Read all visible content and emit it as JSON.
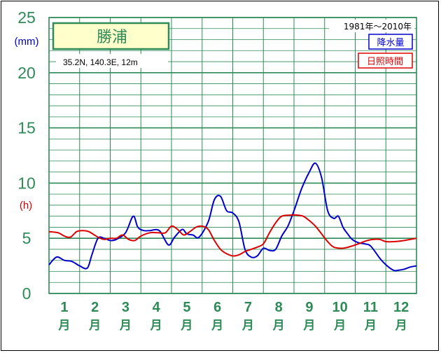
{
  "station": {
    "name": "勝浦",
    "coords": "35.2N,  140.3E,  12m"
  },
  "period": "1981年〜2010年",
  "legend": {
    "precip": "降水量",
    "sunshine": "日照時間"
  },
  "colors": {
    "grid": "#2e8b57",
    "label": "#2e8b57",
    "precip": "#0000cc",
    "sunshine": "#dd0000",
    "title_bg": "#ffffcc"
  },
  "chart_data": {
    "type": "line",
    "title": "勝浦",
    "y_unit_left": "(mm)",
    "y_unit_right": "(h)",
    "ylim": [
      0,
      25
    ],
    "yticks": [
      "0",
      "5",
      "10",
      "15",
      "20",
      "25"
    ],
    "months": [
      {
        "num": "1",
        "kanji": "月"
      },
      {
        "num": "2",
        "kanji": "月"
      },
      {
        "num": "3",
        "kanji": "月"
      },
      {
        "num": "4",
        "kanji": "月"
      },
      {
        "num": "5",
        "kanji": "月"
      },
      {
        "num": "6",
        "kanji": "月"
      },
      {
        "num": "7",
        "kanji": "月"
      },
      {
        "num": "8",
        "kanji": "月"
      },
      {
        "num": "9",
        "kanji": "月"
      },
      {
        "num": "10",
        "kanji": "月"
      },
      {
        "num": "11",
        "kanji": "月"
      },
      {
        "num": "12",
        "kanji": "月"
      }
    ],
    "x_range": [
      0,
      12
    ],
    "series": [
      {
        "key": "precip",
        "name": "降水量",
        "color": "#0000cc",
        "x": [
          0.0,
          0.25,
          0.5,
          0.75,
          1.0,
          1.25,
          1.4,
          1.6,
          1.8,
          2.0,
          2.2,
          2.5,
          2.75,
          2.9,
          3.1,
          3.3,
          3.6,
          3.9,
          4.1,
          4.35,
          4.5,
          4.7,
          4.9,
          5.2,
          5.4,
          5.6,
          5.8,
          6.0,
          6.2,
          6.4,
          6.6,
          6.8,
          7.0,
          7.2,
          7.4,
          7.6,
          7.8,
          8.0,
          8.25,
          8.5,
          8.7,
          8.9,
          9.1,
          9.3,
          9.45,
          9.6,
          9.75,
          9.9,
          10.1,
          10.3,
          10.5,
          10.8,
          11.0,
          11.25,
          11.4,
          11.6,
          11.8,
          12.0
        ],
        "y": [
          2.6,
          3.3,
          3.0,
          2.9,
          2.5,
          2.3,
          3.5,
          5.0,
          5.0,
          4.8,
          4.9,
          5.5,
          7.0,
          6.0,
          5.7,
          5.7,
          5.7,
          4.4,
          5.1,
          5.8,
          5.4,
          5.3,
          5.1,
          6.5,
          8.5,
          8.8,
          7.5,
          7.3,
          6.5,
          4.0,
          3.3,
          3.4,
          4.1,
          3.9,
          4.0,
          5.2,
          6.1,
          7.5,
          9.5,
          11.0,
          11.8,
          10.5,
          7.5,
          6.8,
          7.0,
          6.0,
          5.4,
          4.9,
          4.6,
          4.5,
          4.3,
          3.2,
          2.6,
          2.1,
          2.1,
          2.2,
          2.4,
          2.5
        ]
      },
      {
        "key": "sunshine",
        "name": "日照時間",
        "color": "#dd0000",
        "x": [
          0.0,
          0.3,
          0.5,
          0.7,
          0.9,
          1.1,
          1.3,
          1.6,
          1.8,
          2.0,
          2.2,
          2.4,
          2.6,
          2.8,
          3.0,
          3.3,
          3.55,
          3.8,
          4.0,
          4.2,
          4.4,
          4.6,
          4.8,
          5.0,
          5.2,
          5.4,
          5.6,
          5.8,
          6.0,
          6.2,
          6.4,
          6.6,
          6.8,
          7.0,
          7.2,
          7.4,
          7.6,
          7.9,
          8.1,
          8.3,
          8.5,
          8.7,
          8.9,
          9.1,
          9.3,
          9.6,
          9.9,
          10.2,
          10.4,
          10.6,
          10.8,
          11.0,
          11.3,
          11.6,
          12.0
        ],
        "y": [
          5.6,
          5.5,
          5.2,
          5.1,
          5.6,
          5.7,
          5.6,
          5.1,
          4.9,
          5.0,
          5.0,
          5.3,
          4.9,
          4.8,
          5.2,
          5.5,
          5.5,
          5.5,
          6.1,
          5.8,
          5.3,
          5.6,
          6.0,
          6.1,
          5.8,
          4.8,
          4.0,
          3.6,
          3.4,
          3.5,
          3.8,
          4.0,
          4.2,
          4.5,
          5.5,
          6.4,
          7.0,
          7.1,
          7.1,
          7.0,
          6.6,
          6.1,
          5.4,
          4.7,
          4.2,
          4.1,
          4.3,
          4.6,
          4.8,
          4.9,
          4.9,
          4.7,
          4.7,
          4.8,
          5.0
        ]
      }
    ]
  }
}
